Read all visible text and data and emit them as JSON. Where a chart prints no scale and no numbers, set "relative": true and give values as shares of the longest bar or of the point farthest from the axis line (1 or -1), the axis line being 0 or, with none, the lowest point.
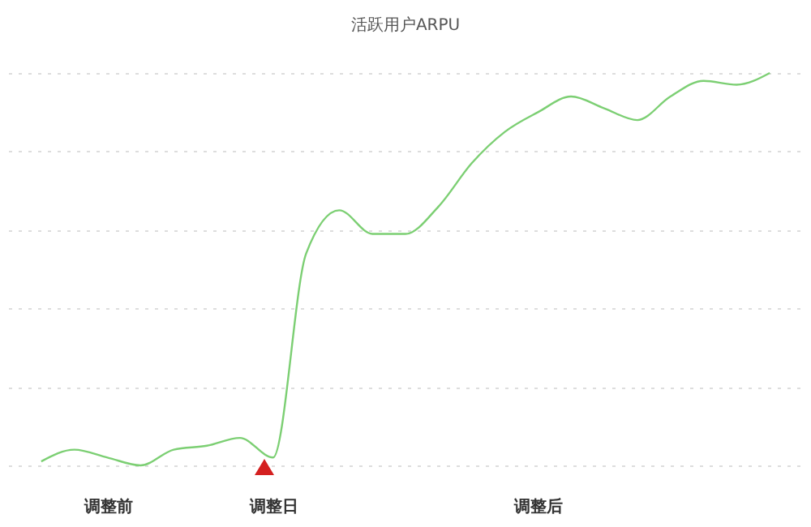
{
  "chart_data": {
    "type": "line",
    "title": "活跃用户ARPU",
    "relative": true,
    "grid": "y",
    "marker": "none",
    "line_style": "solid",
    "categories": [
      null,
      null,
      "调整前",
      null,
      null,
      null,
      null,
      "调整日",
      null,
      null,
      null,
      null,
      null,
      null,
      null,
      "调整后",
      null,
      null,
      null,
      null,
      null,
      null,
      null
    ],
    "series": [
      {
        "color": "#7ccf73",
        "values": [
          0.01,
          0.04,
          0.02,
          0,
          0.04,
          0.05,
          0.07,
          0.02,
          0.54,
          0.65,
          0.59,
          0.59,
          0.66,
          0.77,
          0.85,
          0.9,
          0.94,
          0.91,
          0.88,
          0.94,
          0.98,
          0.97,
          1
        ]
      }
    ]
  }
}
